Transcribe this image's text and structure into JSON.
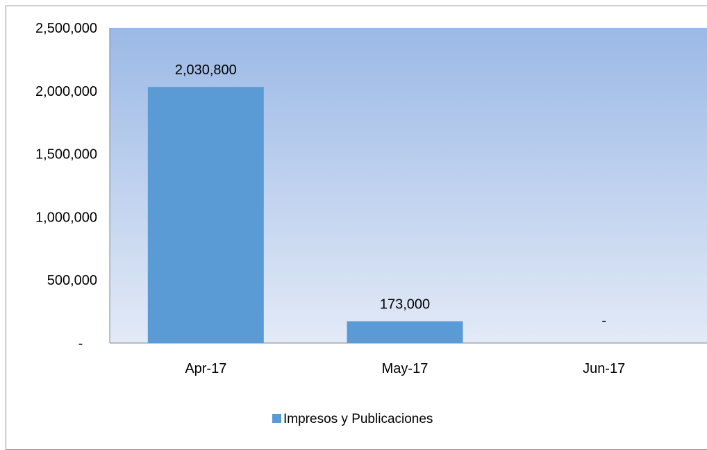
{
  "chart_data": {
    "type": "bar",
    "categories": [
      "Apr-17",
      "May-17",
      "Jun-17"
    ],
    "series": [
      {
        "name": "Impresos y Publicaciones",
        "values": [
          2030800,
          173000,
          0
        ],
        "data_labels": [
          "2,030,800",
          "173,000",
          "-"
        ]
      }
    ],
    "ylim": [
      0,
      2500000
    ],
    "yticks": [
      0,
      500000,
      1000000,
      1500000,
      2000000,
      2500000
    ],
    "ytick_labels": [
      "-",
      "500,000",
      "1,000,000",
      "1,500,000",
      "2,000,000",
      "2,500,000"
    ],
    "grid": false,
    "legend": "bottom",
    "colors": {
      "bar": "#5b9bd5",
      "plot_top": "#9bb9e6",
      "plot_bottom": "#e3eaf7",
      "frame": "#8c8c8c"
    }
  }
}
